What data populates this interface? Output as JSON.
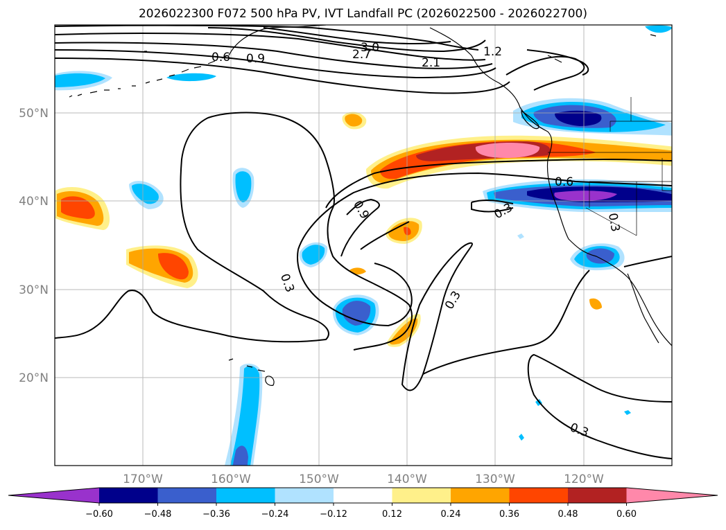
{
  "title": "2026022300 F072 500 hPa PV, IVT Landfall PC (2026022500 - 2026022700)",
  "lat_labels": [
    "50°N",
    "40°N",
    "30°N",
    "20°N"
  ],
  "lon_labels": [
    "170°W",
    "160°W",
    "150°W",
    "140°W",
    "130°W",
    "120°W"
  ],
  "contour_labels": [
    "3.0",
    "2.7",
    "2.1",
    "1.2",
    "0.9",
    "0.6",
    "0.9",
    "0.6",
    "0.3",
    "0.3",
    "0.3",
    "0.3",
    "0.3"
  ],
  "colorbar": {
    "ticks": [
      "−0.60",
      "−0.48",
      "−0.36",
      "−0.24",
      "−0.12",
      "0.12",
      "0.24",
      "0.36",
      "0.48",
      "0.60"
    ],
    "colors": [
      "#9932cc",
      "#00008b",
      "#3a5fcd",
      "#00bfff",
      "#b0e2ff",
      "#ffffff",
      "#fff08a",
      "#ffa500",
      "#ff4500",
      "#b22222",
      "#ff88aa"
    ]
  },
  "map_data": {
    "extent_lon": [
      -180,
      -110
    ],
    "extent_lat": [
      10,
      60
    ],
    "projection": "PlateCarree",
    "gridlines": true
  }
}
